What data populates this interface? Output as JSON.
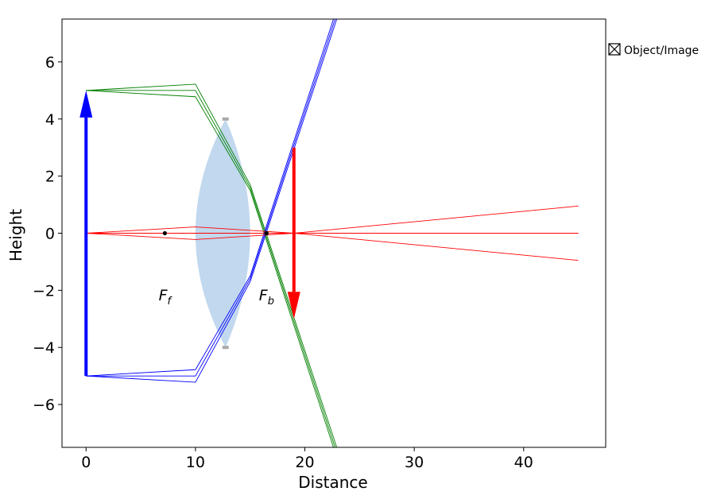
{
  "chart_data": {
    "type": "line",
    "xlabel": "Distance",
    "ylabel": "Height",
    "xlim": [
      -2.2,
      47.5
    ],
    "ylim": [
      -7.5,
      7.5
    ],
    "xticks": [
      0,
      10,
      20,
      30,
      40
    ],
    "yticks": [
      -6,
      -4,
      -2,
      0,
      2,
      4,
      6
    ],
    "legend": {
      "label": "Object/Image",
      "placement": "outside-right-top"
    },
    "lens": {
      "x_left": 10,
      "x_right": 15,
      "x_center": 12.75,
      "half_height": 4,
      "color": "#c1d8ee"
    },
    "focal_points": [
      {
        "x": 7.2,
        "y": 0,
        "label": "F",
        "sub": "f",
        "label_x": 7.2,
        "label_y": -2.35
      },
      {
        "x": 16.5,
        "y": 0,
        "label": "F",
        "sub": "b",
        "label_x": 16.5,
        "label_y": -2.35
      }
    ],
    "object": {
      "x": 0,
      "y_from": -5,
      "y_to": 5,
      "color": "#0000ff"
    },
    "image": {
      "x": 19,
      "y_from": 3,
      "y_to": -3,
      "color": "#ff0000"
    },
    "series": [
      {
        "color": "#008000",
        "points": [
          [
            0,
            5
          ],
          [
            10,
            5.22
          ],
          [
            15,
            1.7
          ],
          [
            23,
            -7.6
          ]
        ]
      },
      {
        "color": "#008000",
        "points": [
          [
            0,
            5
          ],
          [
            10,
            5.0
          ],
          [
            15,
            1.6
          ],
          [
            22.85,
            -7.6
          ]
        ]
      },
      {
        "color": "#008000",
        "points": [
          [
            0,
            5
          ],
          [
            10,
            4.78
          ],
          [
            15,
            1.5
          ],
          [
            22.7,
            -7.6
          ]
        ]
      },
      {
        "color": "#0000ff",
        "points": [
          [
            0,
            -5
          ],
          [
            10,
            -5.22
          ],
          [
            15,
            -1.7
          ],
          [
            23,
            7.6
          ]
        ]
      },
      {
        "color": "#0000ff",
        "points": [
          [
            0,
            -5
          ],
          [
            10,
            -5.0
          ],
          [
            15,
            -1.6
          ],
          [
            22.85,
            7.6
          ]
        ]
      },
      {
        "color": "#0000ff",
        "points": [
          [
            0,
            -5
          ],
          [
            10,
            -4.78
          ],
          [
            15,
            -1.5
          ],
          [
            22.7,
            7.6
          ]
        ]
      },
      {
        "color": "#ff0000",
        "points": [
          [
            0,
            0
          ],
          [
            10,
            0.22
          ],
          [
            15,
            0.1
          ],
          [
            19,
            0
          ],
          [
            45,
            -0.95
          ]
        ]
      },
      {
        "color": "#ff0000",
        "points": [
          [
            0,
            0
          ],
          [
            10,
            0
          ],
          [
            15,
            0
          ],
          [
            19,
            0
          ],
          [
            45,
            0
          ]
        ]
      },
      {
        "color": "#ff0000",
        "points": [
          [
            0,
            0
          ],
          [
            10,
            -0.22
          ],
          [
            15,
            -0.1
          ],
          [
            19,
            0
          ],
          [
            45,
            0.95
          ]
        ]
      }
    ]
  }
}
